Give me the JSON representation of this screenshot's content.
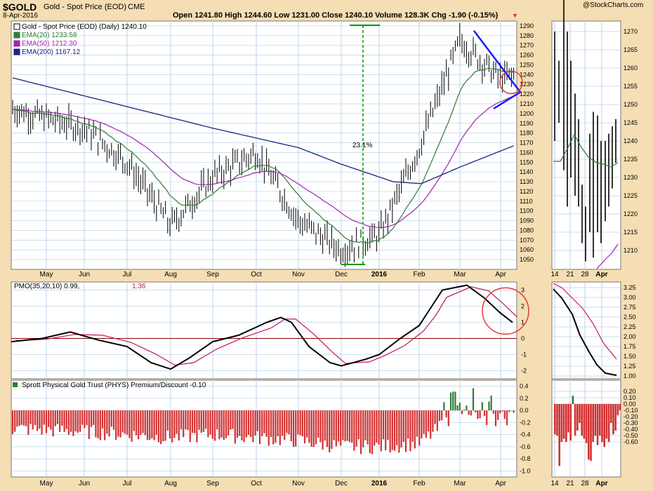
{
  "header": {
    "symbol": "$GOLD",
    "name": "Gold - Spot Price (EOD)",
    "exchange": "CME",
    "date": "8-Apr-2016",
    "quote": "Open 1241.80  High 1244.60  Low 1231.00  Close 1240.10  Volume 128.3K  Chg -1.90 (-0.15%)",
    "down_icon": "down-triangle-icon",
    "brand": "@StockCharts.com"
  },
  "colors": {
    "background": "#f5deb3",
    "panel": "#ffffff",
    "grid": "#bcd3ea",
    "price": "#000000",
    "ema20": "#2e7d32",
    "ema50": "#9c27b0",
    "ema200": "#1a237e",
    "trend": "#1a1aff",
    "annotation": "#009900",
    "circle": "#e53935",
    "pmo_line": "#000000",
    "pmo_signal": "#c2185b",
    "zero_line": "#8b0000",
    "bar_pos": "#2e7d32",
    "bar_neg": "#d32f2f"
  },
  "price_panel": {
    "legend": [
      {
        "label": "Gold - Spot Price (EOD) (Daily) 1240.10",
        "color": "#000000"
      },
      {
        "label": "EMA(20) 1233.58",
        "color": "#2e7d32"
      },
      {
        "label": "EMA(50) 1212.30",
        "color": "#9c27b0"
      },
      {
        "label": "EMA(200) 1167.12",
        "color": "#1a237e"
      }
    ],
    "annotation_label": "23.1%",
    "ylim": [
      1040,
      1295
    ],
    "ticks": [
      1050,
      1060,
      1070,
      1080,
      1090,
      1100,
      1110,
      1120,
      1130,
      1140,
      1150,
      1160,
      1170,
      1180,
      1190,
      1200,
      1210,
      1220,
      1230,
      1240,
      1250,
      1260,
      1270,
      1280,
      1290
    ]
  },
  "pmo_panel": {
    "label_main": "PMO(35,20,10) 0.99, ",
    "label_signal": "1.36",
    "ylim": [
      -2.5,
      3.5
    ],
    "ticks": [
      -2,
      -1,
      0,
      1,
      2,
      3
    ]
  },
  "phys_panel": {
    "label": "Sprott Physical Gold Trust (PHYS) Premium/Discount -0.10",
    "ylim": [
      -1.1,
      0.5
    ],
    "ticks": [
      "0.4",
      "0.2",
      "0.0",
      "-0.2",
      "-0.4",
      "-0.6",
      "-0.8",
      "-1.0"
    ]
  },
  "x_axis": {
    "months": [
      "May",
      "Jun",
      "Jul",
      "Aug",
      "Sep",
      "Oct",
      "Nov",
      "Dec",
      "2016",
      "Feb",
      "Mar",
      "Apr"
    ]
  },
  "inset": {
    "x_labels": [
      "14",
      "21",
      "28",
      "Apr"
    ],
    "price_ticks": [
      "1270",
      "1265",
      "1260",
      "1255",
      "1250",
      "1245",
      "1240",
      "1235",
      "1230",
      "1225",
      "1220",
      "1215",
      "1210"
    ],
    "pmo_ticks": [
      "3.25",
      "3.00",
      "2.75",
      "2.50",
      "2.25",
      "2.00",
      "1.75",
      "1.50",
      "1.25",
      "1.00"
    ],
    "phys_ticks": [
      "0.20",
      "0.10",
      "0.00",
      "-0.10",
      "-0.20",
      "-0.30",
      "-0.40",
      "-0.50",
      "-0.60"
    ]
  },
  "chart_data": {
    "type": "line",
    "title": "Gold - Spot Price (EOD)",
    "x": [
      "Apr",
      "May",
      "Jun",
      "Jul",
      "Aug",
      "Sep",
      "Oct",
      "Nov",
      "Dec",
      "2016",
      "Feb",
      "Mar",
      "Apr"
    ],
    "series": [
      {
        "name": "Gold - Spot Price (EOD) (Daily)",
        "values": [
          1205,
          1190,
          1175,
          1140,
          1090,
          1125,
          1145,
          1090,
          1065,
          1080,
          1155,
          1270,
          1240
        ]
      },
      {
        "name": "EMA(20)",
        "values": [
          1195,
          1195,
          1178,
          1150,
          1098,
          1123,
          1155,
          1095,
          1072,
          1082,
          1150,
          1255,
          1233.58
        ]
      },
      {
        "name": "EMA(50)",
        "values": [
          1205,
          1200,
          1185,
          1170,
          1120,
          1125,
          1148,
          1108,
          1080,
          1088,
          1140,
          1200,
          1212.3
        ]
      },
      {
        "name": "EMA(200)",
        "values": [
          1237,
          1220,
          1205,
          1190,
          1180,
          1180,
          1170,
          1160,
          1140,
          1130,
          1135,
          1150,
          1167.12
        ]
      },
      {
        "name": "PMO(35,20,10)",
        "values": [
          -0.2,
          0.2,
          0.4,
          -0.5,
          -1.8,
          0,
          1.5,
          -1.5,
          -1.7,
          -0.8,
          0.7,
          3.2,
          0.99
        ]
      },
      {
        "name": "Sprott Physical Gold Trust (PHYS) Premium/Discount",
        "values": [
          -0.3,
          -0.35,
          -0.3,
          -0.35,
          -0.5,
          -0.4,
          -0.45,
          -0.5,
          -0.6,
          -0.55,
          -0.5,
          0.1,
          -0.1
        ]
      }
    ],
    "ylim": [
      1040,
      1295
    ]
  }
}
